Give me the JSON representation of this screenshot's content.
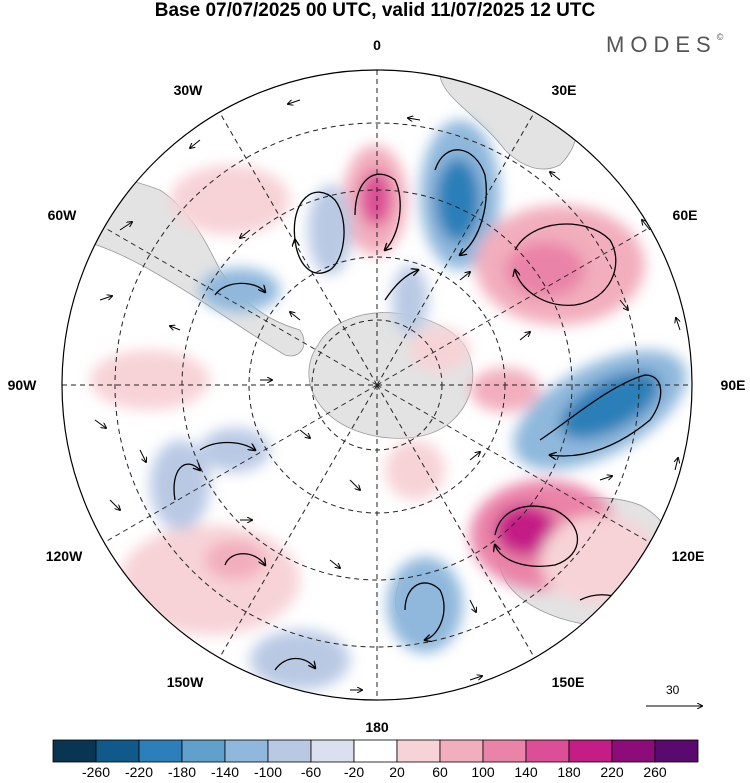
{
  "title": "Base 07/07/2025 00 UTC, valid 11/07/2025 12 UTC",
  "brand": {
    "name": "MODES",
    "mark": "©"
  },
  "longitude_labels": {
    "lon_0": "0",
    "lon_30e": "30E",
    "lon_60e": "60E",
    "lon_90e": "90E",
    "lon_120e": "120E",
    "lon_150e": "150E",
    "lon_180": "180",
    "lon_150w": "150W",
    "lon_120w": "120W",
    "lon_90w": "90W",
    "lon_60w": "60W",
    "lon_30w": "30W"
  },
  "reference_vector": {
    "value": "30"
  },
  "colorbar": {
    "labels": [
      "-260",
      "-220",
      "-180",
      "-140",
      "-100",
      "-60",
      "-20",
      "20",
      "60",
      "100",
      "140",
      "180",
      "220",
      "260"
    ],
    "colors": [
      "#0a3552",
      "#0f5a8a",
      "#2c7fb8",
      "#5fa0cc",
      "#8fb8dc",
      "#b9c9e4",
      "#dcdfee",
      "#ffffff",
      "#f7d3d7",
      "#f2aebd",
      "#ea83a8",
      "#dc4e95",
      "#c41e86",
      "#8e0c7a",
      "#5a0a6e"
    ]
  }
}
